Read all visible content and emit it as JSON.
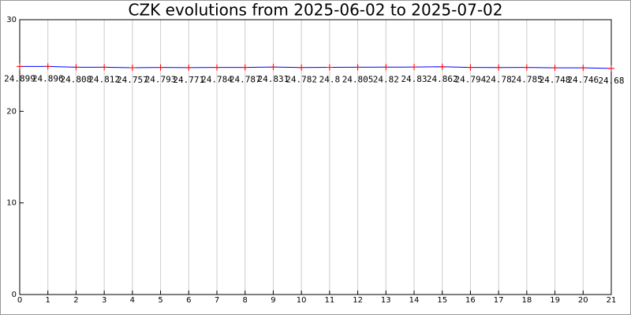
{
  "chart_data": {
    "type": "line",
    "title": "CZK evolutions from 2025-06-02 to 2025-07-02",
    "x": [
      0,
      1,
      2,
      3,
      4,
      5,
      6,
      7,
      8,
      9,
      10,
      11,
      12,
      13,
      14,
      15,
      16,
      17,
      18,
      19,
      20,
      21
    ],
    "series": [
      {
        "name": "CZK",
        "color": "#0000ff",
        "marker_color": "#ff0000",
        "values": [
          24.899,
          24.896,
          24.808,
          24.812,
          24.757,
          24.793,
          24.771,
          24.784,
          24.787,
          24.831,
          24.782,
          24.8,
          24.805,
          24.82,
          24.83,
          24.862,
          24.794,
          24.78,
          24.785,
          24.748,
          24.746,
          24.68
        ]
      }
    ],
    "xlim": [
      0,
      21
    ],
    "xticks": [
      0,
      1,
      2,
      3,
      4,
      5,
      6,
      7,
      8,
      9,
      10,
      11,
      12,
      13,
      14,
      15,
      16,
      17,
      18,
      19,
      20,
      21
    ],
    "ylim": [
      0,
      30
    ],
    "yticks": [
      0,
      10,
      20,
      30
    ],
    "grid": true,
    "data_labels": true
  }
}
